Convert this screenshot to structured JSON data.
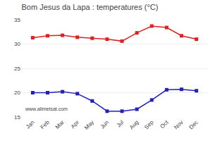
{
  "chart_data": {
    "type": "line",
    "title": "Bom Jesus da Lapa : temperatures (°C)",
    "categories": [
      "Jan",
      "Feb",
      "Mar",
      "Apr",
      "May",
      "Jun",
      "Jul",
      "Aug",
      "Sep",
      "Oct",
      "Nov",
      "Dec"
    ],
    "series": [
      {
        "color": "#dd2222",
        "values": [
          31.3,
          31.7,
          31.8,
          31.4,
          31.2,
          31.0,
          30.6,
          32.3,
          33.7,
          33.4,
          31.7,
          31.0
        ]
      },
      {
        "color": "#2222bb",
        "values": [
          20.0,
          20.0,
          20.2,
          19.8,
          18.3,
          16.2,
          16.2,
          16.6,
          18.5,
          20.6,
          20.7,
          20.4
        ]
      }
    ],
    "ylim": [
      15,
      35
    ],
    "yticks": [
      15,
      20,
      25,
      30,
      35
    ],
    "grid": "y",
    "marker": "square",
    "annotations": [
      "www.allmetsat.com"
    ]
  }
}
